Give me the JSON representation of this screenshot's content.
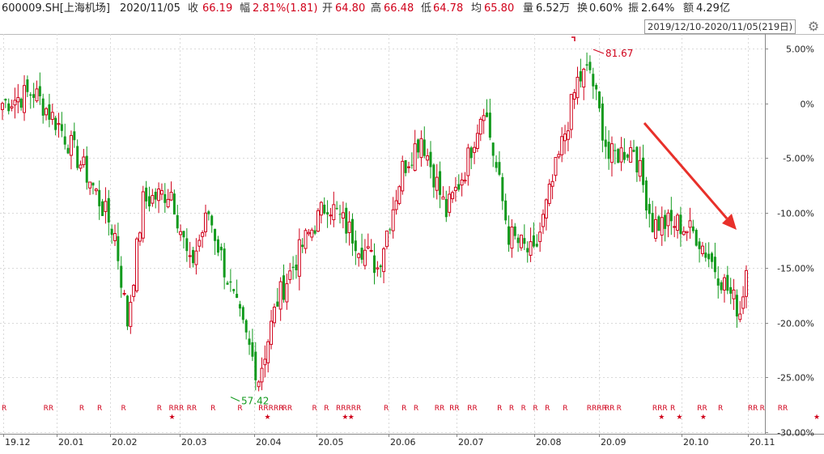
{
  "header": {
    "code": "600009.SH[上海机场]",
    "date": "2020/11/05",
    "close_label": "收",
    "close_value": "66.19",
    "change_label": "幅",
    "change_value": "2.81%(1.81)",
    "open_label": "开",
    "open_value": "64.80",
    "high_label": "高",
    "high_value": "66.48",
    "low_label": "低",
    "low_value": "64.78",
    "avg_label": "均",
    "avg_value": "65.80",
    "volume_label": "量",
    "volume_value": "6.52万",
    "turnover_label": "换",
    "turnover_value": "0.60%",
    "amplitude_label": "振",
    "amplitude_value": "2.64%",
    "amount_label": "额",
    "amount_value": "4.29亿"
  },
  "range_label": "2019/12/10-2020/11/05(219日)",
  "colors": {
    "up": "#d0021b",
    "down": "#129a1d",
    "grid": "#d9d9d9",
    "arrow": "#e8302a"
  },
  "chart_data": {
    "type": "candlestick",
    "ylabels": [
      "5.00%",
      "0%",
      "-5.00%",
      "-10.00%",
      "-15.00%",
      "-20.00%",
      "-25.00%",
      "-30.00%"
    ],
    "yvals": [
      5,
      0,
      -5,
      -10,
      -15,
      -20,
      -25,
      -30
    ],
    "xlabels": [
      "19.12",
      "20.01",
      "20.02",
      "20.03",
      "20.04",
      "20.05",
      "20.06",
      "20.07",
      "20.08",
      "20.09",
      "20.10",
      "20.11"
    ],
    "max_price": "81.67",
    "min_price": "57.42",
    "max_pct": 4.9,
    "min_pct": -26.8,
    "keypoints": [
      [
        0,
        0
      ],
      [
        10,
        1
      ],
      [
        18,
        -2
      ],
      [
        28,
        -7
      ],
      [
        36,
        -12
      ],
      [
        40,
        -20
      ],
      [
        45,
        -9
      ],
      [
        54,
        -8
      ],
      [
        60,
        -15
      ],
      [
        66,
        -10
      ],
      [
        74,
        -18
      ],
      [
        82,
        -25
      ],
      [
        88,
        -18
      ],
      [
        96,
        -13
      ],
      [
        104,
        -9
      ],
      [
        112,
        -12
      ],
      [
        120,
        -15
      ],
      [
        128,
        -6
      ],
      [
        134,
        -3
      ],
      [
        142,
        -10
      ],
      [
        148,
        -6
      ],
      [
        154,
        0
      ],
      [
        162,
        -12
      ],
      [
        170,
        -14
      ],
      [
        178,
        -5
      ],
      [
        184,
        2
      ],
      [
        188,
        3
      ],
      [
        194,
        -5
      ],
      [
        202,
        -4
      ],
      [
        208,
        -11
      ],
      [
        216,
        -11
      ],
      [
        222,
        -12
      ],
      [
        228,
        -15
      ],
      [
        234,
        -18
      ],
      [
        236,
        -19
      ],
      [
        238,
        -15
      ]
    ],
    "r_marks": [
      [
        "R",
        0
      ],
      [
        "RR",
        14
      ],
      [
        "R",
        26
      ],
      [
        "R",
        32
      ],
      [
        "R",
        40
      ],
      [
        "R",
        52
      ],
      [
        "RRR",
        56
      ],
      [
        "RR",
        62
      ],
      [
        "R",
        70
      ],
      [
        "R",
        79
      ],
      [
        "RRRRR",
        86
      ],
      [
        "RR",
        94
      ],
      [
        "R",
        104
      ],
      [
        "R",
        108
      ],
      [
        "RRRRR",
        112
      ],
      [
        "R",
        128
      ],
      [
        "R",
        134
      ],
      [
        "R",
        138
      ],
      [
        "RR",
        145
      ],
      [
        "RR",
        150
      ],
      [
        "RR",
        156
      ],
      [
        "R",
        166
      ],
      [
        "R",
        170
      ],
      [
        "R",
        174
      ],
      [
        "R",
        178
      ],
      [
        "R",
        182
      ],
      [
        "R",
        188
      ],
      [
        "RRRR",
        196
      ],
      [
        "RR",
        202
      ],
      [
        "R",
        206
      ],
      [
        "RRR",
        218
      ],
      [
        "R",
        224
      ],
      [
        "RR",
        233
      ],
      [
        "R",
        240
      ],
      [
        "RR",
        250
      ],
      [
        "R",
        254
      ],
      [
        "RR",
        260
      ]
    ],
    "star_marks": [
      56,
      88,
      114,
      116,
      220,
      226,
      234,
      272
    ],
    "trend_arrow": "down"
  }
}
